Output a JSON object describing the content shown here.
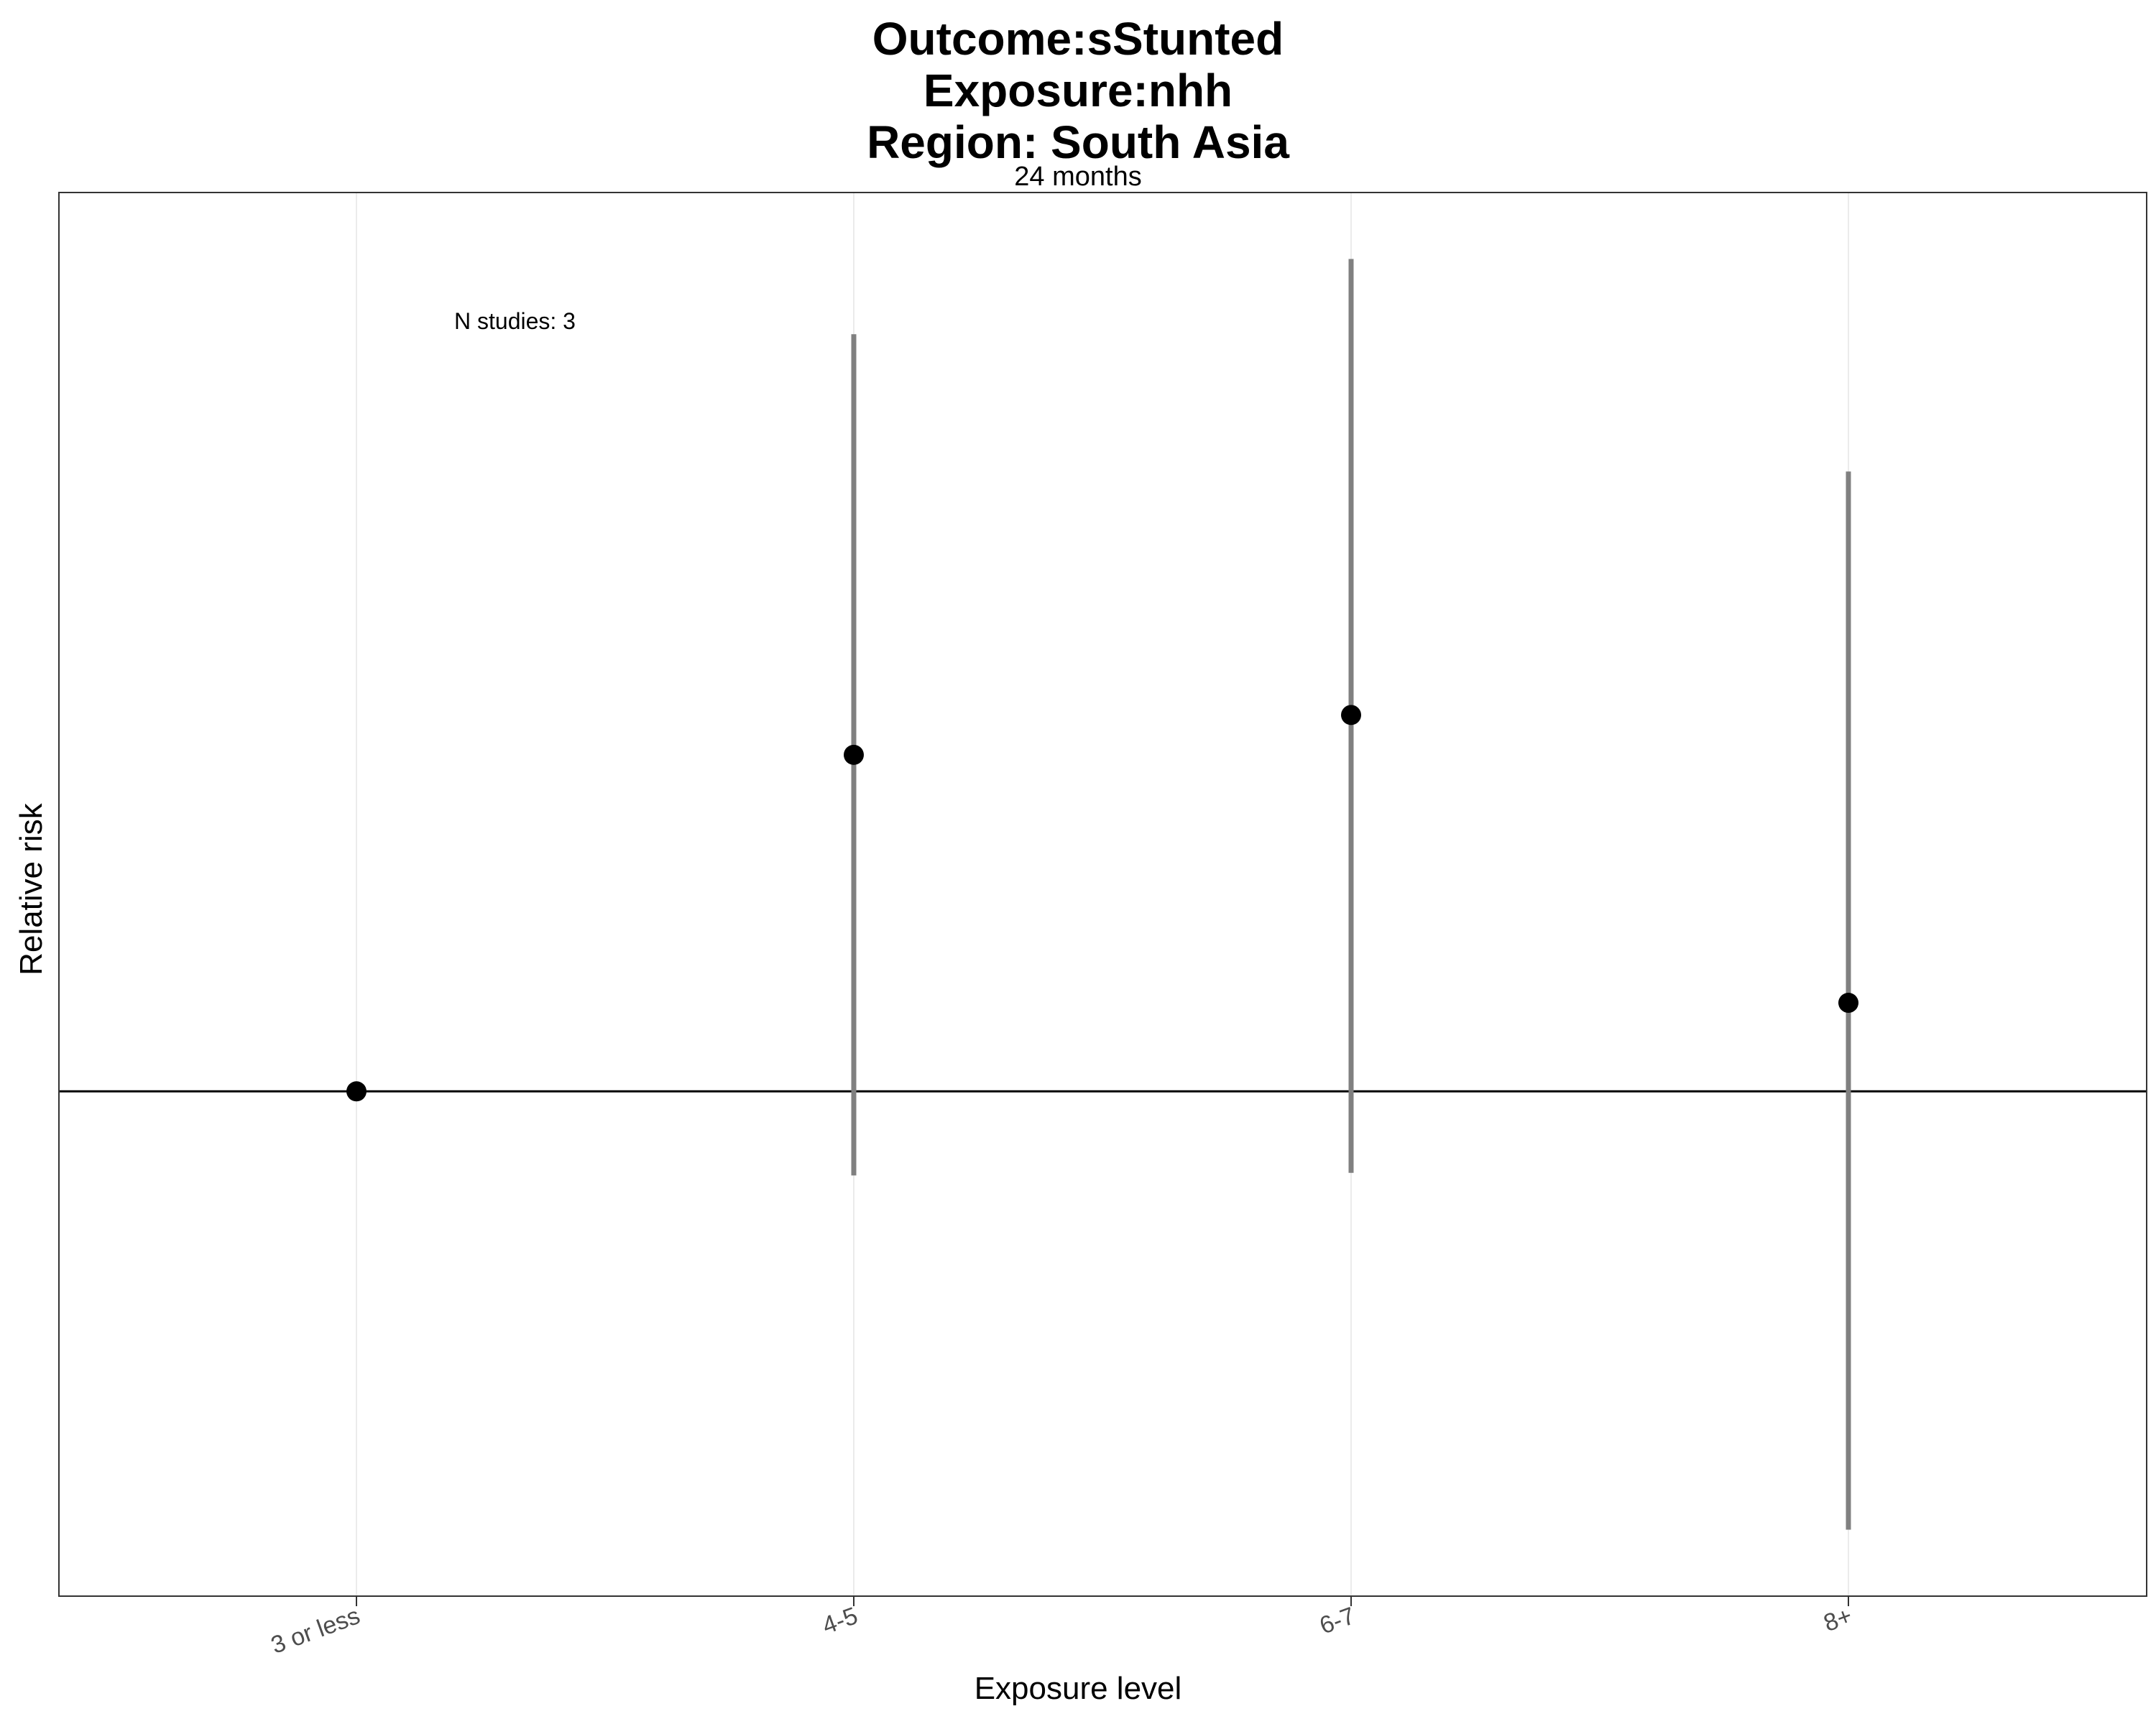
{
  "chart_data": {
    "type": "scatter",
    "title": [
      "Outcome:sStunted",
      "Exposure:nhh",
      "Region: South Asia"
    ],
    "subtitle": "24 months",
    "xlabel": "Exposure level",
    "ylabel": "Relative risk",
    "annotation": "N studies: 3",
    "categories": [
      "3 or less",
      "4-5",
      "6-7",
      "8+"
    ],
    "series": [
      {
        "estimate": [
          1.0,
          1.38,
          1.425,
          1.1
        ],
        "ci_lower": [
          1.0,
          0.905,
          0.908,
          0.505
        ],
        "ci_upper": [
          1.0,
          1.855,
          1.94,
          1.7
        ]
      }
    ],
    "reference_line": 1,
    "ylim": [
      0.43,
      2.015
    ],
    "y_ticks_shown": false,
    "grid": "vertical only",
    "colors": {
      "point": "#000000",
      "errorbar": "#808080",
      "gridline": "#ebebeb",
      "refline": "#000000"
    }
  }
}
